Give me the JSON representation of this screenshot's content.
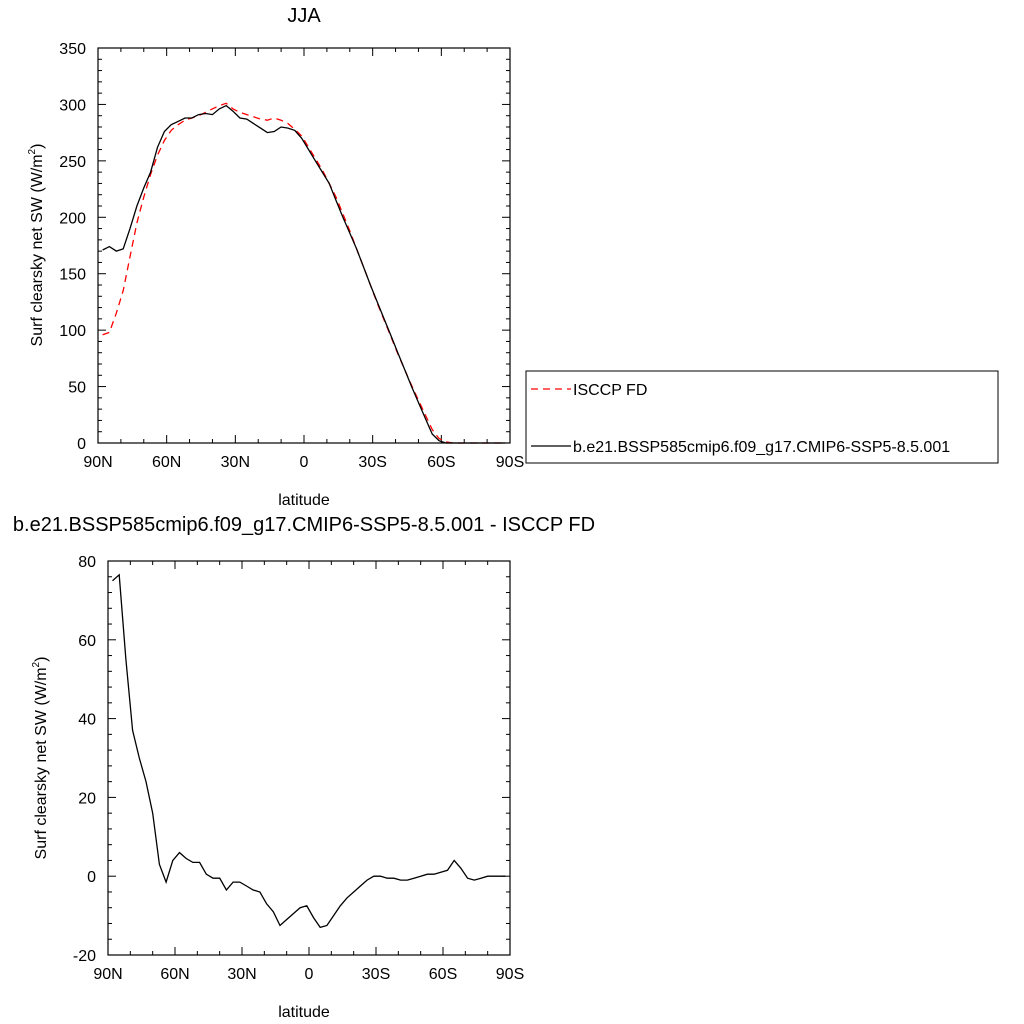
{
  "chart_data": [
    {
      "type": "line",
      "title": "JJA",
      "xlabel": "latitude",
      "ylabel": "Surf clearsky net SW (W/m",
      "ylabel_sup": "2",
      "ylabel_end": ")",
      "xlim": [
        90,
        -90
      ],
      "ylim": [
        0,
        350
      ],
      "xticks": [
        90,
        60,
        30,
        0,
        -30,
        -60,
        -90
      ],
      "xtick_labels": [
        "90N",
        "60N",
        "30N",
        "0",
        "30S",
        "60S",
        "90S"
      ],
      "yticks": [
        0,
        50,
        100,
        150,
        200,
        250,
        300,
        350
      ],
      "ytick_labels": [
        "0",
        "50",
        "100",
        "150",
        "200",
        "250",
        "300",
        "350"
      ],
      "legend_position": "right",
      "series": [
        {
          "name": "ISCCP FD",
          "color": "#ff0000",
          "dash": "dashed",
          "x": [
            88,
            85,
            82,
            79,
            76,
            73,
            70,
            67,
            64,
            61,
            58,
            55,
            52,
            49,
            46,
            43,
            40,
            37,
            34,
            31,
            28,
            25,
            22,
            19,
            16,
            13,
            10,
            7,
            4,
            1,
            -2,
            -5,
            -8,
            -11,
            -14,
            -17,
            -20,
            -23,
            -26,
            -29,
            -32,
            -35,
            -38,
            -41,
            -44,
            -47,
            -50,
            -53,
            -56,
            -59,
            -62,
            -65,
            -68,
            -71,
            -74,
            -77,
            -80,
            -83,
            -86,
            -88
          ],
          "y": [
            96,
            98,
            115,
            135,
            165,
            195,
            218,
            238,
            255,
            268,
            277,
            282,
            286,
            288,
            290,
            293,
            296,
            299,
            301,
            296,
            293,
            291,
            289,
            287,
            286,
            288,
            286,
            283,
            278,
            272,
            262,
            252,
            242,
            230,
            218,
            203,
            188,
            172,
            156,
            140,
            124,
            109,
            94,
            79,
            65,
            51,
            38,
            25,
            12,
            4,
            1,
            0,
            0,
            0,
            0,
            0,
            0,
            0,
            0,
            0
          ]
        },
        {
          "name": "b.e21.BSSP585cmip6.f09_g17.CMIP6-SSP5-8.5.001",
          "color": "#000000",
          "dash": "solid",
          "x": [
            88,
            85,
            82,
            79,
            76,
            73,
            70,
            67,
            64,
            61,
            58,
            55,
            52,
            49,
            46,
            43,
            40,
            37,
            34,
            31,
            28,
            25,
            22,
            19,
            16,
            13,
            10,
            7,
            4,
            1,
            -2,
            -5,
            -8,
            -11,
            -14,
            -17,
            -20,
            -23,
            -26,
            -29,
            -32,
            -35,
            -38,
            -41,
            -44,
            -47,
            -50,
            -53,
            -56,
            -59,
            -62,
            -65,
            -68,
            -71,
            -74,
            -77,
            -80,
            -83,
            -86,
            -88
          ],
          "y": [
            171,
            174,
            170,
            172,
            190,
            210,
            226,
            240,
            262,
            276,
            282,
            285,
            288,
            288,
            291,
            292,
            291,
            296,
            299,
            294,
            288,
            287,
            283,
            279,
            275,
            276,
            280,
            279,
            277,
            270,
            260,
            250,
            240,
            230,
            215,
            200,
            186,
            172,
            156,
            140,
            125,
            110,
            95,
            80,
            65,
            50,
            36,
            22,
            8,
            2,
            0,
            0,
            0,
            0,
            0,
            0,
            0,
            0,
            0,
            0
          ]
        }
      ]
    },
    {
      "type": "line",
      "title": "b.e21.BSSP585cmip6.f09_g17.CMIP6-SSP5-8.5.001 - ISCCP FD",
      "xlabel": "latitude",
      "ylabel": "Surf clearsky net SW (W/m",
      "ylabel_sup": "2",
      "ylabel_end": ")",
      "xlim": [
        90,
        -90
      ],
      "ylim": [
        -20,
        80
      ],
      "xticks": [
        90,
        60,
        30,
        0,
        -30,
        -60,
        -90
      ],
      "xtick_labels": [
        "90N",
        "60N",
        "30N",
        "0",
        "30S",
        "60S",
        "90S"
      ],
      "yticks": [
        -20,
        0,
        20,
        40,
        60,
        80
      ],
      "ytick_labels": [
        "-20",
        "0",
        "20",
        "40",
        "60",
        "80"
      ],
      "series": [
        {
          "color": "#000000",
          "dash": "solid",
          "x": [
            88,
            85,
            82,
            79,
            76,
            73,
            70,
            67,
            64,
            61,
            58,
            55,
            52,
            49,
            46,
            43,
            40,
            37,
            34,
            31,
            28,
            25,
            22,
            19,
            16,
            13,
            10,
            7,
            4,
            1,
            -2,
            -5,
            -8,
            -11,
            -14,
            -17,
            -20,
            -23,
            -26,
            -29,
            -32,
            -35,
            -38,
            -41,
            -44,
            -47,
            -50,
            -53,
            -56,
            -59,
            -62,
            -65,
            -68,
            -71,
            -74,
            -77,
            -80,
            -83,
            -86,
            -88
          ],
          "y": [
            75,
            76.5,
            55,
            37,
            30,
            24,
            16,
            3,
            -1.5,
            4,
            6,
            4.5,
            3.5,
            3.5,
            0.5,
            -0.5,
            -0.5,
            -3.5,
            -1.5,
            -1.5,
            -2.5,
            -3.5,
            -4,
            -7,
            -9,
            -12.5,
            -11,
            -9.5,
            -8,
            -7.5,
            -10.5,
            -13,
            -12.5,
            -10,
            -7.5,
            -5.5,
            -4,
            -2.5,
            -1,
            0,
            0,
            -0.5,
            -0.5,
            -1,
            -1,
            -0.5,
            0,
            0.5,
            0.5,
            1,
            1.5,
            4,
            2,
            -0.5,
            -1,
            -0.5,
            0,
            0,
            0,
            0
          ]
        }
      ]
    }
  ]
}
